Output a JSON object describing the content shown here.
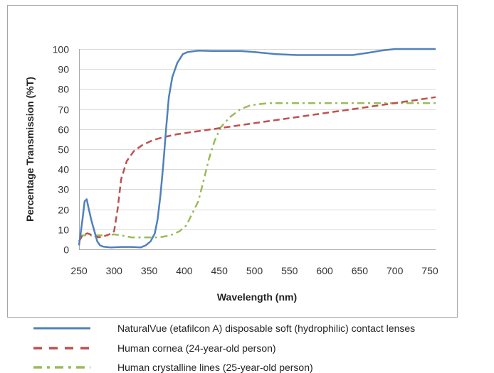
{
  "chart_data": {
    "type": "line",
    "xlabel": "Wavelength (nm)",
    "ylabel": "Percentage Transmission (%T)",
    "xlim": [
      250,
      760
    ],
    "ylim": [
      0,
      100
    ],
    "x_ticks": [
      "250",
      "300",
      "350",
      "400",
      "450",
      "500",
      "550",
      "600",
      "650",
      "700",
      "750"
    ],
    "y_ticks": [
      "0",
      "10",
      "20",
      "30",
      "40",
      "50",
      "60",
      "70",
      "80",
      "90",
      "100"
    ],
    "grid": "horizontal",
    "legend_position": "bottom",
    "series": [
      {
        "name": "NaturalVue (etafilcon A) disposable soft (hydrophilic) contact lenses",
        "color": "#4f81bd",
        "dash": "solid",
        "points": [
          [
            250,
            2
          ],
          [
            255,
            15
          ],
          [
            258,
            24
          ],
          [
            261,
            25
          ],
          [
            264,
            20
          ],
          [
            268,
            14
          ],
          [
            272,
            9
          ],
          [
            276,
            4
          ],
          [
            280,
            2
          ],
          [
            285,
            1.3
          ],
          [
            295,
            1
          ],
          [
            310,
            1.2
          ],
          [
            325,
            1.2
          ],
          [
            338,
            1
          ],
          [
            345,
            2
          ],
          [
            352,
            4
          ],
          [
            358,
            8
          ],
          [
            362,
            15
          ],
          [
            366,
            27
          ],
          [
            370,
            42
          ],
          [
            374,
            60
          ],
          [
            378,
            76
          ],
          [
            383,
            86
          ],
          [
            390,
            93
          ],
          [
            398,
            97.5
          ],
          [
            405,
            98.5
          ],
          [
            420,
            99.2
          ],
          [
            440,
            99
          ],
          [
            480,
            99
          ],
          [
            500,
            98.5
          ],
          [
            530,
            97.5
          ],
          [
            560,
            97
          ],
          [
            590,
            97
          ],
          [
            620,
            97
          ],
          [
            640,
            97
          ],
          [
            660,
            98
          ],
          [
            680,
            99.2
          ],
          [
            700,
            100
          ],
          [
            760,
            100
          ]
        ]
      },
      {
        "name": "Human cornea (24-year-old person)",
        "color": "#c0504d",
        "dash": "dashed",
        "points": [
          [
            250,
            4
          ],
          [
            255,
            7
          ],
          [
            262,
            8
          ],
          [
            270,
            7
          ],
          [
            278,
            6
          ],
          [
            285,
            6.5
          ],
          [
            293,
            7.5
          ],
          [
            300,
            9
          ],
          [
            305,
            20
          ],
          [
            310,
            35
          ],
          [
            318,
            44
          ],
          [
            328,
            49
          ],
          [
            340,
            52
          ],
          [
            355,
            54.5
          ],
          [
            370,
            56
          ],
          [
            390,
            57.5
          ],
          [
            420,
            59
          ],
          [
            450,
            60.5
          ],
          [
            500,
            63
          ],
          [
            550,
            65.5
          ],
          [
            600,
            68
          ],
          [
            650,
            70.5
          ],
          [
            700,
            73
          ],
          [
            730,
            74.5
          ],
          [
            760,
            76
          ]
        ]
      },
      {
        "name": "Human crystalline lines (25-year-old person)",
        "color": "#9bbb59",
        "dash": "dashdot",
        "points": [
          [
            250,
            7
          ],
          [
            290,
            7
          ],
          [
            300,
            7.5
          ],
          [
            310,
            7
          ],
          [
            325,
            6
          ],
          [
            345,
            6
          ],
          [
            365,
            6
          ],
          [
            380,
            7
          ],
          [
            393,
            9
          ],
          [
            403,
            12
          ],
          [
            410,
            17
          ],
          [
            420,
            24
          ],
          [
            428,
            35
          ],
          [
            435,
            45
          ],
          [
            443,
            54
          ],
          [
            452,
            61
          ],
          [
            465,
            66
          ],
          [
            480,
            70
          ],
          [
            495,
            72
          ],
          [
            520,
            73
          ],
          [
            560,
            73
          ],
          [
            600,
            73
          ],
          [
            650,
            73
          ],
          [
            700,
            73
          ],
          [
            760,
            73
          ]
        ]
      }
    ]
  }
}
